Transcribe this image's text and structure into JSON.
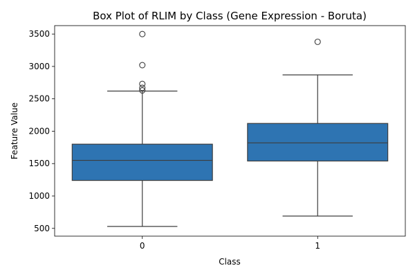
{
  "chart_data": {
    "type": "box",
    "title": "Box Plot of RLIM by Class (Gene Expression - Boruta)",
    "xlabel": "Class",
    "ylabel": "Feature Value",
    "categories": [
      "0",
      "1"
    ],
    "ylim": [
      380,
      3630
    ],
    "yticks": [
      500,
      1000,
      1500,
      2000,
      2500,
      3000,
      3500
    ],
    "grid": false,
    "legend": "none",
    "box_color": "#2e74b2",
    "line_color": "#3d3d3d",
    "boxes": [
      {
        "category": "0",
        "whisker_low": 530,
        "q1": 1240,
        "median": 1550,
        "q3": 1800,
        "whisker_high": 2620,
        "outliers": [
          2630,
          2670,
          2730,
          3020,
          3500
        ]
      },
      {
        "category": "1",
        "whisker_low": 690,
        "q1": 1540,
        "median": 1820,
        "q3": 2120,
        "whisker_high": 2870,
        "outliers": [
          3380
        ]
      }
    ]
  }
}
